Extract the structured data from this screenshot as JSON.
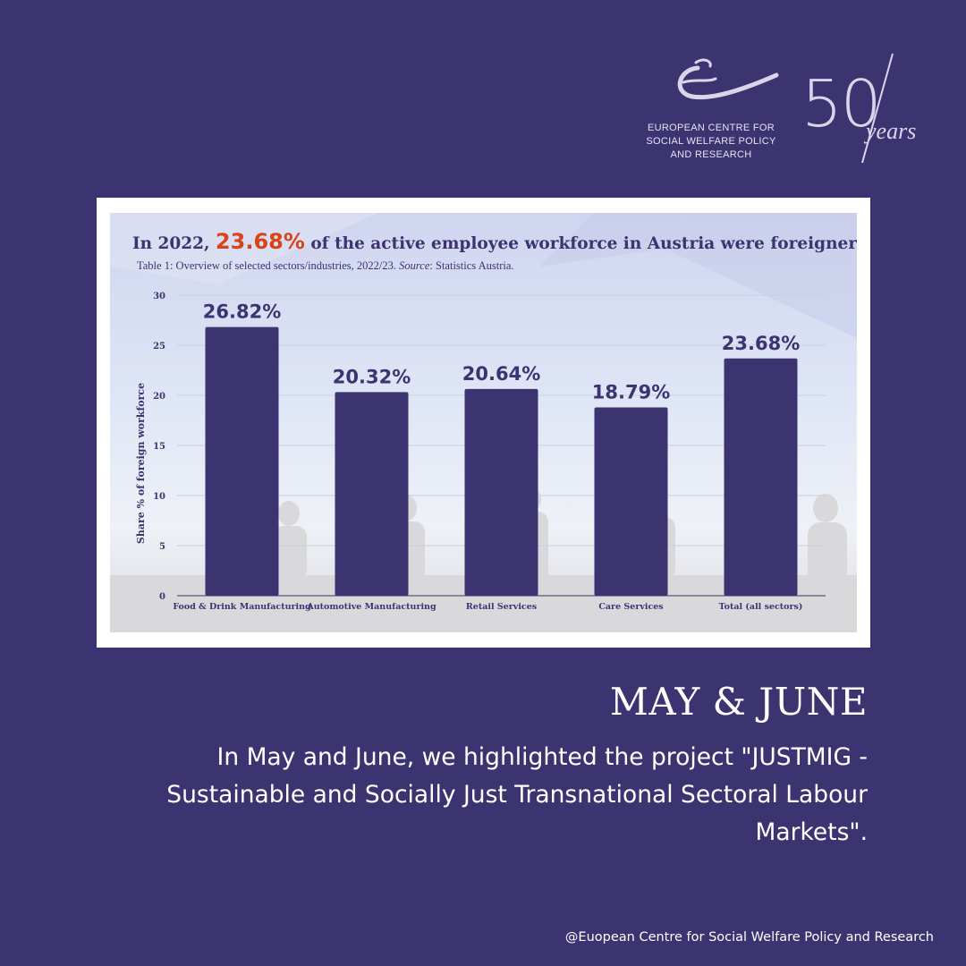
{
  "logo": {
    "org_lines": [
      "EUROPEAN CENTRE FOR",
      "SOCIAL WELFARE POLICY",
      "AND RESEARCH"
    ],
    "anniversary_number": "50",
    "anniversary_word": "years"
  },
  "chart_data": {
    "type": "bar",
    "title_prefix": "In 2022, ",
    "title_highlight": "23.68%",
    "title_suffix": " of the active employee workforce in Austria were foreigners.",
    "caption_main": "Table 1: Overview of selected sectors/industries, 2022/23. ",
    "caption_source_label": "Source",
    "caption_source": ": Statistics Austria.",
    "ylabel": "Share % of foreign workforce",
    "xlabel": "",
    "ylim": [
      0,
      30
    ],
    "yticks": [
      0,
      5,
      10,
      15,
      20,
      25,
      30
    ],
    "categories": [
      "Food & Drink Manufacturing",
      "Automotive Manufacturing",
      "Retail Services",
      "Care Services",
      "Total (all sectors)"
    ],
    "values": [
      26.82,
      20.32,
      20.64,
      18.79,
      23.68
    ],
    "value_labels": [
      "26.82%",
      "20.32%",
      "20.64%",
      "18.79%",
      "23.68%"
    ],
    "bar_color": "#3b3470",
    "highlight_color": "#d84318",
    "grid": true
  },
  "headline": "MAY & JUNE",
  "body": "In May and June, we highlighted the project \"JUSTMIG - Sustainable and Socially Just Transnational Sectoral Labour Markets\".",
  "footer": "@Euopean Centre for Social Welfare Policy and Research",
  "colors": {
    "background": "#3b3470",
    "text": "#ffffff"
  }
}
